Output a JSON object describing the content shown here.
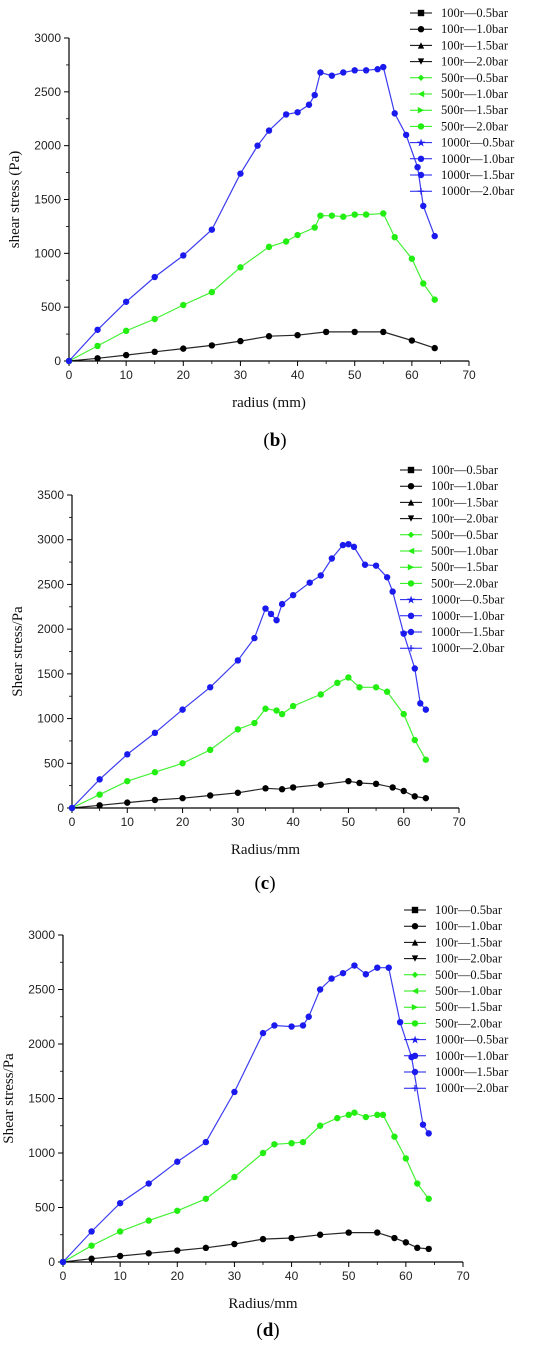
{
  "panels": [
    {
      "key": "b",
      "label_open": "(",
      "label_letter": "b",
      "label_close": ")"
    },
    {
      "key": "c",
      "label_open": "(",
      "label_letter": "c",
      "label_close": ")"
    },
    {
      "key": "d",
      "label_open": "(",
      "label_letter": "d",
      "label_close": ")"
    }
  ],
  "legend_entries": [
    "100r—0.5bar",
    "100r—1.0bar",
    "100r—1.5bar",
    "100r—2.0bar",
    "500r—0.5bar",
    "500r—1.0bar",
    "500r—1.5bar",
    "500r—2.0bar",
    "1000r—0.5bar",
    "1000r—1.0bar",
    "1000r—1.5bar",
    "1000r—2.0bar"
  ],
  "colors": {
    "r100": "#000000",
    "r500": "#22ee11",
    "r1000": "#1a1aee",
    "axis": "#000000"
  },
  "chart_data": [
    {
      "type": "line",
      "panel": "b",
      "title": "",
      "xlabel": "radius (mm)",
      "ylabel": "shear stress (Pa)",
      "xlim": [
        0,
        70
      ],
      "ylim": [
        0,
        3000
      ],
      "xticks": [
        0,
        10,
        20,
        30,
        40,
        50,
        60,
        70
      ],
      "yticks": [
        0,
        500,
        1000,
        1500,
        2000,
        2500,
        3000
      ],
      "legend_position": "top-right",
      "series": [
        {
          "group": "100r",
          "x": [
            0,
            5,
            10,
            15,
            20,
            25,
            30,
            35,
            40,
            45,
            50,
            55,
            60,
            64
          ],
          "y": [
            0,
            25,
            55,
            85,
            115,
            145,
            185,
            230,
            240,
            270,
            270,
            270,
            190,
            120
          ]
        },
        {
          "group": "500r",
          "x": [
            0,
            5,
            10,
            15,
            20,
            25,
            30,
            35,
            38,
            40,
            43,
            44,
            46,
            48,
            50,
            52,
            55,
            57,
            60,
            62,
            64
          ],
          "y": [
            0,
            140,
            280,
            390,
            520,
            640,
            870,
            1060,
            1110,
            1170,
            1240,
            1350,
            1350,
            1340,
            1360,
            1360,
            1370,
            1150,
            950,
            720,
            570
          ]
        },
        {
          "group": "1000r",
          "x": [
            0,
            5,
            10,
            15,
            20,
            25,
            30,
            33,
            35,
            38,
            40,
            42,
            43,
            44,
            46,
            48,
            50,
            52,
            54,
            55,
            57,
            59,
            61,
            62,
            64
          ],
          "y": [
            0,
            290,
            550,
            780,
            980,
            1220,
            1740,
            2000,
            2140,
            2290,
            2310,
            2380,
            2470,
            2680,
            2650,
            2680,
            2700,
            2700,
            2710,
            2730,
            2300,
            2100,
            1800,
            1440,
            1160
          ]
        }
      ]
    },
    {
      "type": "line",
      "panel": "c",
      "title": "",
      "xlabel": "Radius/mm",
      "ylabel": "Shear stress/Pa",
      "xlim": [
        0,
        70
      ],
      "ylim": [
        0,
        3500
      ],
      "xticks": [
        0,
        10,
        20,
        30,
        40,
        50,
        60,
        70
      ],
      "yticks": [
        0,
        500,
        1000,
        1500,
        2000,
        2500,
        3000,
        3500
      ],
      "legend_position": "top-right",
      "series": [
        {
          "group": "100r",
          "x": [
            0,
            5,
            10,
            15,
            20,
            25,
            30,
            35,
            38,
            40,
            45,
            50,
            52,
            55,
            58,
            60,
            62,
            64
          ],
          "y": [
            0,
            30,
            60,
            90,
            110,
            140,
            170,
            220,
            210,
            230,
            260,
            300,
            280,
            270,
            230,
            190,
            130,
            110
          ]
        },
        {
          "group": "500r",
          "x": [
            0,
            5,
            10,
            15,
            20,
            25,
            30,
            33,
            35,
            37,
            38,
            40,
            45,
            48,
            50,
            52,
            55,
            57,
            60,
            62,
            64
          ],
          "y": [
            0,
            150,
            300,
            400,
            500,
            650,
            880,
            950,
            1110,
            1090,
            1050,
            1140,
            1270,
            1400,
            1460,
            1350,
            1350,
            1300,
            1050,
            760,
            540
          ]
        },
        {
          "group": "1000r",
          "x": [
            0,
            5,
            10,
            15,
            20,
            25,
            30,
            33,
            35,
            36,
            37,
            38,
            40,
            43,
            45,
            47,
            49,
            50,
            51,
            53,
            55,
            57,
            58,
            60,
            62,
            63,
            64
          ],
          "y": [
            0,
            320,
            600,
            840,
            1100,
            1350,
            1650,
            1900,
            2230,
            2170,
            2100,
            2280,
            2380,
            2520,
            2600,
            2790,
            2940,
            2950,
            2920,
            2720,
            2710,
            2580,
            2420,
            1950,
            1560,
            1170,
            1100
          ]
        }
      ]
    },
    {
      "type": "line",
      "panel": "d",
      "title": "",
      "xlabel": "Radius/mm",
      "ylabel": "Shear stress/Pa",
      "xlim": [
        0,
        70
      ],
      "ylim": [
        0,
        3000
      ],
      "xticks": [
        0,
        10,
        20,
        30,
        40,
        50,
        60,
        70
      ],
      "yticks": [
        0,
        500,
        1000,
        1500,
        2000,
        2500,
        3000
      ],
      "legend_position": "top-right",
      "series": [
        {
          "group": "100r",
          "x": [
            0,
            5,
            10,
            15,
            20,
            25,
            30,
            35,
            40,
            45,
            50,
            55,
            58,
            60,
            62,
            64
          ],
          "y": [
            0,
            30,
            55,
            80,
            105,
            130,
            165,
            210,
            220,
            250,
            270,
            270,
            220,
            180,
            130,
            120
          ]
        },
        {
          "group": "500r",
          "x": [
            0,
            5,
            10,
            15,
            20,
            25,
            30,
            35,
            37,
            40,
            42,
            45,
            48,
            50,
            51,
            53,
            55,
            56,
            58,
            60,
            62,
            64
          ],
          "y": [
            0,
            150,
            280,
            380,
            470,
            580,
            780,
            1000,
            1080,
            1090,
            1100,
            1250,
            1320,
            1350,
            1370,
            1330,
            1350,
            1350,
            1150,
            950,
            720,
            580
          ]
        },
        {
          "group": "1000r",
          "x": [
            0,
            5,
            10,
            15,
            20,
            25,
            30,
            35,
            37,
            40,
            42,
            43,
            45,
            47,
            49,
            51,
            53,
            55,
            57,
            59,
            61,
            63,
            64
          ],
          "y": [
            0,
            280,
            540,
            720,
            920,
            1100,
            1560,
            2100,
            2170,
            2160,
            2170,
            2250,
            2500,
            2600,
            2650,
            2720,
            2640,
            2700,
            2700,
            2200,
            1880,
            1260,
            1180
          ]
        }
      ]
    }
  ]
}
